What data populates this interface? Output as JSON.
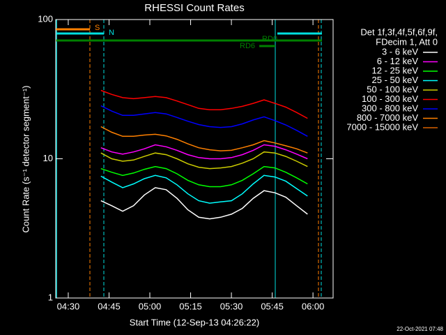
{
  "chart_data": {
    "type": "line",
    "title": "RHESSI Count Rates",
    "x_label": "Start Time (12-Sep-13 04:26:22)",
    "y_label": "Count Rate (s⁻¹ detector segment⁻¹)",
    "legend_header": [
      "Det 1f,3f,4f,5f,6f,9f,",
      "FDecim 1, Att 0"
    ],
    "footer": "22-Oct-2021 07:48",
    "annotations": [
      "S",
      "N",
      "RD0",
      "RD6"
    ],
    "y_log": true,
    "ylim": [
      1,
      100
    ],
    "yticks": [
      1,
      10,
      100
    ],
    "xlim": [
      "04:25:24",
      "06:07:24"
    ],
    "xticks": [
      "04:30",
      "04:45",
      "05:00",
      "05:15",
      "05:30",
      "05:45",
      "06:00"
    ],
    "x": [
      "04:42",
      "04:46",
      "04:50",
      "04:54",
      "04:58",
      "05:02",
      "05:06",
      "05:10",
      "05:14",
      "05:18",
      "05:22",
      "05:26",
      "05:30",
      "05:34",
      "05:38",
      "05:42",
      "05:46",
      "05:50",
      "05:54",
      "05:58"
    ],
    "series": [
      {
        "name": "3 - 6 keV",
        "color": "#ffffff",
        "values": [
          5.0,
          4.6,
          4.2,
          4.6,
          5.5,
          6.2,
          6.0,
          5.2,
          4.3,
          3.8,
          3.7,
          3.8,
          4.0,
          4.4,
          5.2,
          5.9,
          5.7,
          5.3,
          4.6,
          4.0
        ]
      },
      {
        "name": "6 - 12 keV",
        "color": "#ff00ff",
        "values": [
          12,
          11.2,
          10.8,
          11.2,
          11.8,
          12.6,
          12.2,
          11.5,
          10.7,
          10.2,
          10,
          10,
          10.2,
          10.7,
          11.5,
          12.6,
          12.3,
          11.6,
          10.8,
          10
        ]
      },
      {
        "name": "12 - 25 keV",
        "color": "#00ff00",
        "values": [
          8.5,
          8.0,
          7.6,
          7.9,
          8.4,
          8.8,
          8.5,
          7.8,
          7.0,
          6.5,
          6.3,
          6.3,
          6.5,
          7.0,
          7.8,
          8.8,
          8.6,
          8.0,
          7.3,
          6.6
        ]
      },
      {
        "name": "25 - 50 keV",
        "color": "#00ffff",
        "values": [
          7.5,
          6.8,
          6.2,
          6.6,
          7.2,
          7.6,
          7.3,
          6.5,
          5.6,
          5.0,
          4.8,
          4.9,
          5.0,
          5.6,
          6.6,
          7.6,
          7.4,
          6.9,
          6.1,
          5.4
        ]
      },
      {
        "name": "50 - 100 keV",
        "color": "#cccc00",
        "values": [
          11,
          10,
          9.6,
          9.8,
          10.4,
          11,
          10.7,
          10,
          9.2,
          8.7,
          8.5,
          8.6,
          8.8,
          9.3,
          10,
          11.2,
          11,
          10.4,
          9.6,
          8.8
        ]
      },
      {
        "name": "100 - 300 keV",
        "color": "#ff0000",
        "values": [
          31,
          29,
          27.5,
          27,
          27.5,
          28,
          27.5,
          26,
          24.5,
          23,
          22.5,
          22.5,
          23,
          23.8,
          25,
          26.5,
          25,
          23.5,
          21.5,
          19.5
        ]
      },
      {
        "name": "300 - 800 keV",
        "color": "#0000ff",
        "values": [
          24,
          22,
          20.5,
          20.5,
          21,
          21.5,
          21,
          19.8,
          18.6,
          17.6,
          17,
          16.8,
          17,
          17.8,
          19,
          20,
          18.8,
          17.5,
          16,
          14.5
        ]
      },
      {
        "name": "800 - 7000 keV",
        "color": "#ff8000",
        "values": [
          17,
          15.5,
          14.5,
          14.5,
          14.8,
          15,
          14.6,
          13.8,
          12.8,
          12,
          11.6,
          11.4,
          11.5,
          12,
          12.6,
          13.5,
          13,
          12.4,
          11.8,
          11
        ]
      },
      {
        "name": "7000 - 15000 keV",
        "color": "#d86000",
        "values": [
          null,
          null,
          null,
          null,
          null,
          null,
          null,
          null,
          null,
          null,
          null,
          null,
          null,
          null,
          null,
          null,
          null,
          null,
          null,
          null
        ]
      }
    ]
  }
}
